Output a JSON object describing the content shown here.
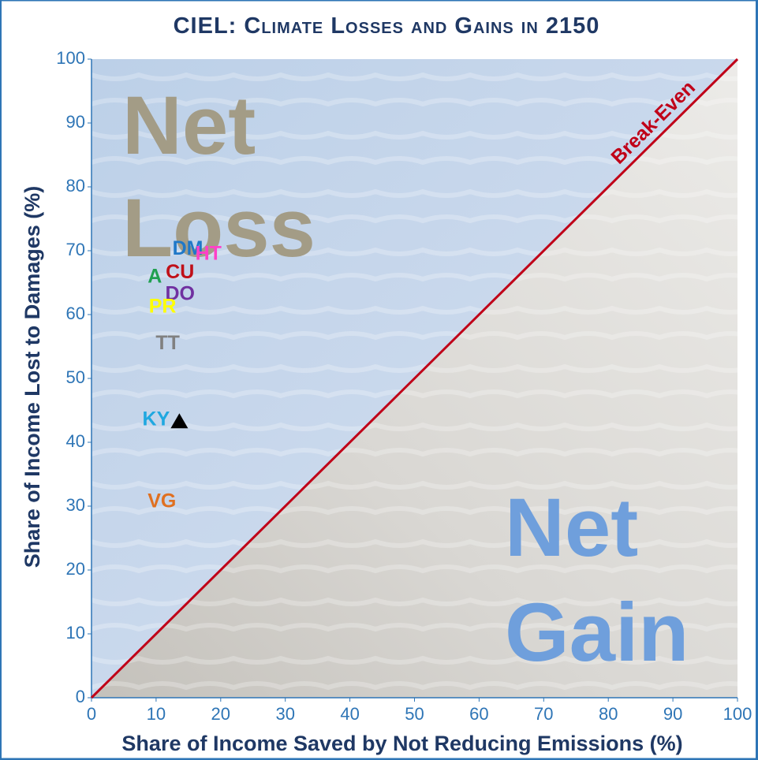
{
  "chart_data": {
    "type": "scatter",
    "title": "CIEL: Climate Losses and Gains in 2150",
    "x_label": "Share of Income Saved by Not Reducing Emissions (%)",
    "y_label": "Share of Income Lost to Damages (%)",
    "xlim": [
      0,
      100
    ],
    "ylim": [
      0,
      100
    ],
    "xticks": [
      0,
      10,
      20,
      30,
      40,
      50,
      60,
      70,
      80,
      90,
      100
    ],
    "yticks": [
      0,
      10,
      20,
      30,
      40,
      50,
      60,
      70,
      80,
      90,
      100
    ],
    "labels": [
      "DM",
      "HT",
      "A",
      "CU",
      "DO",
      "PR",
      "TT",
      "KY",
      null,
      "VG"
    ],
    "x": [
      14.9,
      18.1,
      9.8,
      13.7,
      13.7,
      11.0,
      11.8,
      10.0,
      13.6,
      10.9
    ],
    "y": [
      70.2,
      69.4,
      65.8,
      66.5,
      63.1,
      61.1,
      55.4,
      43.5,
      43.3,
      30.6
    ],
    "colors": [
      "#1f78c8",
      "#ff40c8",
      "#20a050",
      "#c01018",
      "#7030a0",
      "#ffff00",
      "#808080",
      "#20a8e0",
      "#000000",
      "#e07020"
    ],
    "reference_line": {
      "label": "Break-Even",
      "color": "#c00018"
    },
    "annotations": [
      {
        "lines": [
          "Net",
          "Loss"
        ],
        "color": "#a39c86"
      },
      {
        "lines": [
          "Net",
          "Gain"
        ],
        "color": "#6f9fdc"
      }
    ]
  }
}
